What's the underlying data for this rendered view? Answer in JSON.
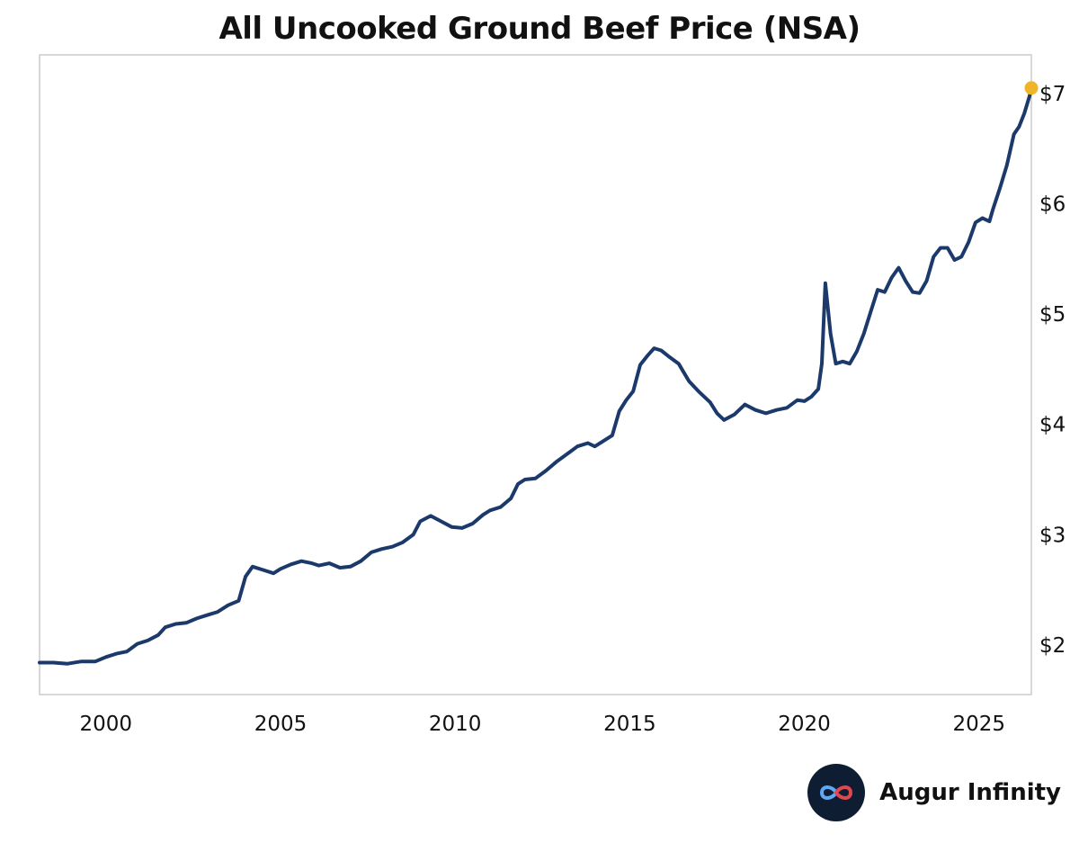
{
  "chart_data": {
    "type": "line",
    "title": "All Uncooked Ground Beef Price (NSA)",
    "xlabel": "",
    "ylabel": "",
    "x_ticks": [
      "2000",
      "2005",
      "2010",
      "2015",
      "2020",
      "2025"
    ],
    "y_ticks": [
      "$2",
      "$3",
      "$4",
      "$5",
      "$6",
      "$7"
    ],
    "xlim": [
      1998.1,
      2026.5
    ],
    "ylim": [
      1.55,
      7.35
    ],
    "grid": false,
    "legend": "none",
    "series": [
      {
        "color": "#1b3a6b",
        "points": [
          [
            1998.1,
            1.84
          ],
          [
            1998.5,
            1.84
          ],
          [
            1998.9,
            1.83
          ],
          [
            1999.3,
            1.85
          ],
          [
            1999.7,
            1.85
          ],
          [
            2000.0,
            1.89
          ],
          [
            2000.3,
            1.92
          ],
          [
            2000.6,
            1.94
          ],
          [
            2000.9,
            2.01
          ],
          [
            2001.2,
            2.04
          ],
          [
            2001.5,
            2.09
          ],
          [
            2001.7,
            2.16
          ],
          [
            2002.0,
            2.19
          ],
          [
            2002.3,
            2.2
          ],
          [
            2002.6,
            2.24
          ],
          [
            2002.9,
            2.27
          ],
          [
            2003.2,
            2.3
          ],
          [
            2003.5,
            2.36
          ],
          [
            2003.8,
            2.4
          ],
          [
            2004.0,
            2.62
          ],
          [
            2004.2,
            2.71
          ],
          [
            2004.5,
            2.68
          ],
          [
            2004.8,
            2.65
          ],
          [
            2005.0,
            2.69
          ],
          [
            2005.3,
            2.73
          ],
          [
            2005.6,
            2.76
          ],
          [
            2005.9,
            2.74
          ],
          [
            2006.1,
            2.72
          ],
          [
            2006.4,
            2.74
          ],
          [
            2006.7,
            2.7
          ],
          [
            2007.0,
            2.71
          ],
          [
            2007.3,
            2.76
          ],
          [
            2007.6,
            2.84
          ],
          [
            2007.9,
            2.87
          ],
          [
            2008.2,
            2.89
          ],
          [
            2008.5,
            2.93
          ],
          [
            2008.8,
            3.0
          ],
          [
            2009.0,
            3.12
          ],
          [
            2009.3,
            3.17
          ],
          [
            2009.6,
            3.12
          ],
          [
            2009.9,
            3.07
          ],
          [
            2010.2,
            3.06
          ],
          [
            2010.5,
            3.1
          ],
          [
            2010.8,
            3.18
          ],
          [
            2011.0,
            3.22
          ],
          [
            2011.3,
            3.25
          ],
          [
            2011.6,
            3.33
          ],
          [
            2011.8,
            3.46
          ],
          [
            2012.0,
            3.5
          ],
          [
            2012.3,
            3.51
          ],
          [
            2012.6,
            3.58
          ],
          [
            2012.9,
            3.66
          ],
          [
            2013.2,
            3.73
          ],
          [
            2013.5,
            3.8
          ],
          [
            2013.8,
            3.83
          ],
          [
            2014.0,
            3.8
          ],
          [
            2014.2,
            3.84
          ],
          [
            2014.5,
            3.9
          ],
          [
            2014.7,
            4.12
          ],
          [
            2014.9,
            4.22
          ],
          [
            2015.1,
            4.3
          ],
          [
            2015.3,
            4.54
          ],
          [
            2015.5,
            4.62
          ],
          [
            2015.7,
            4.69
          ],
          [
            2015.9,
            4.67
          ],
          [
            2016.1,
            4.62
          ],
          [
            2016.4,
            4.55
          ],
          [
            2016.7,
            4.39
          ],
          [
            2017.0,
            4.29
          ],
          [
            2017.3,
            4.2
          ],
          [
            2017.5,
            4.1
          ],
          [
            2017.7,
            4.04
          ],
          [
            2018.0,
            4.09
          ],
          [
            2018.3,
            4.18
          ],
          [
            2018.6,
            4.13
          ],
          [
            2018.9,
            4.1
          ],
          [
            2019.2,
            4.13
          ],
          [
            2019.5,
            4.15
          ],
          [
            2019.8,
            4.22
          ],
          [
            2020.0,
            4.21
          ],
          [
            2020.2,
            4.25
          ],
          [
            2020.4,
            4.32
          ],
          [
            2020.5,
            4.55
          ],
          [
            2020.6,
            5.28
          ],
          [
            2020.75,
            4.82
          ],
          [
            2020.9,
            4.55
          ],
          [
            2021.1,
            4.57
          ],
          [
            2021.3,
            4.55
          ],
          [
            2021.5,
            4.66
          ],
          [
            2021.7,
            4.82
          ],
          [
            2021.9,
            5.02
          ],
          [
            2022.1,
            5.22
          ],
          [
            2022.3,
            5.2
          ],
          [
            2022.5,
            5.33
          ],
          [
            2022.7,
            5.42
          ],
          [
            2022.9,
            5.3
          ],
          [
            2023.1,
            5.2
          ],
          [
            2023.3,
            5.19
          ],
          [
            2023.5,
            5.3
          ],
          [
            2023.7,
            5.52
          ],
          [
            2023.9,
            5.6
          ],
          [
            2024.1,
            5.6
          ],
          [
            2024.3,
            5.49
          ],
          [
            2024.5,
            5.52
          ],
          [
            2024.7,
            5.65
          ],
          [
            2024.9,
            5.83
          ],
          [
            2025.1,
            5.87
          ],
          [
            2025.3,
            5.84
          ],
          [
            2025.4,
            5.95
          ],
          [
            2025.6,
            6.14
          ],
          [
            2025.8,
            6.35
          ],
          [
            2026.0,
            6.63
          ],
          [
            2026.15,
            6.7
          ],
          [
            2026.3,
            6.82
          ],
          [
            2026.45,
            6.98
          ]
        ]
      }
    ],
    "last_point": {
      "x": 2026.5,
      "y": 7.05,
      "color": "#f0b429"
    }
  },
  "brand": {
    "name": "Augur Infinity"
  },
  "colors": {
    "axis_frame": "#cccccc",
    "line": "#1b3a6b",
    "marker": "#f0b429",
    "logo_bg": "#0f1d33"
  }
}
